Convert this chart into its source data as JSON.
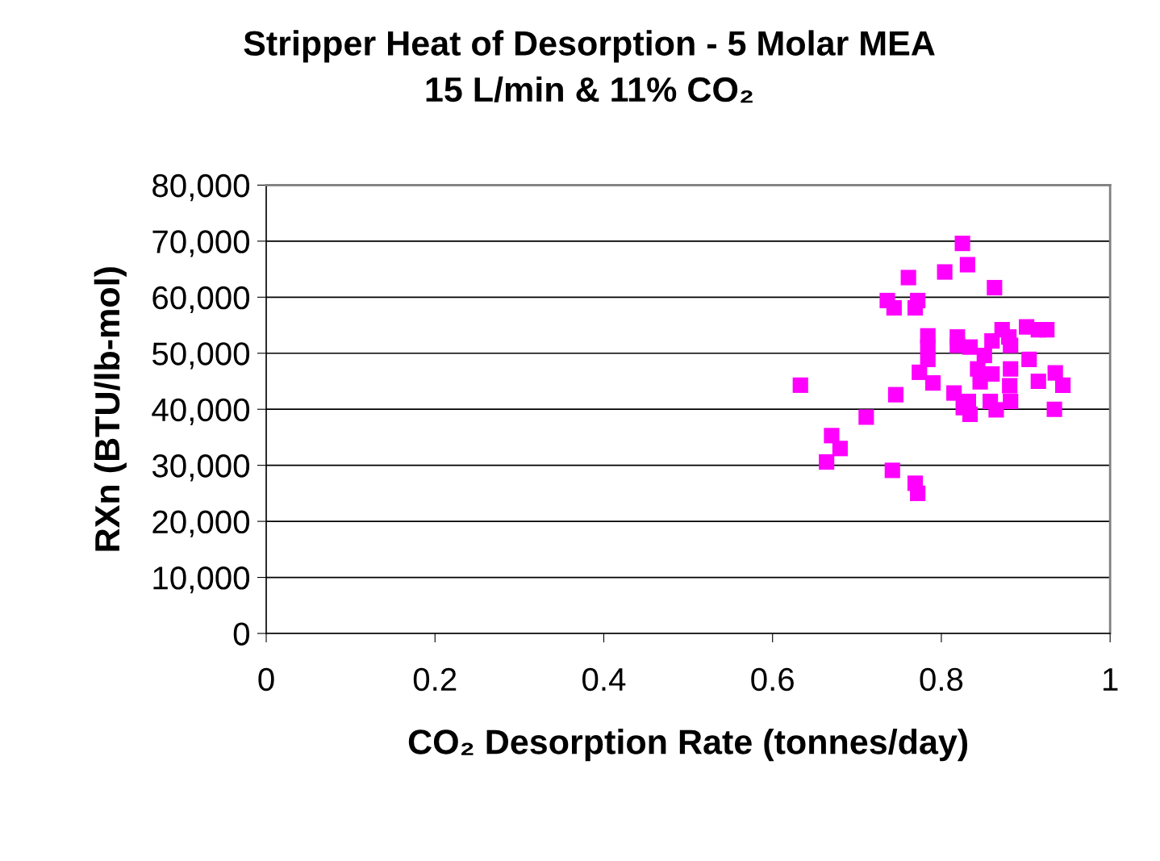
{
  "chart_data": {
    "type": "scatter",
    "title": "Stripper Heat of Desorption - 5 Molar MEA\n15 L/min & 11% CO₂",
    "xlabel": "CO₂ Desorption Rate (tonnes/day)",
    "ylabel": "RXn (BTU/lb-mol)",
    "xlim": [
      0,
      1
    ],
    "xticks": [
      0,
      0.2,
      0.4,
      0.6,
      0.8,
      1
    ],
    "ylim": [
      0,
      80000
    ],
    "yticks": [
      {
        "value": 0,
        "label": "0"
      },
      {
        "value": 10000,
        "label": "10,000"
      },
      {
        "value": 20000,
        "label": "20,000"
      },
      {
        "value": 30000,
        "label": "30,000"
      },
      {
        "value": 40000,
        "label": "40,000"
      },
      {
        "value": 50000,
        "label": "50,000"
      },
      {
        "value": 60000,
        "label": "60,000"
      },
      {
        "value": 70000,
        "label": "70,000"
      },
      {
        "value": 80000,
        "label": "80,000"
      }
    ],
    "grid": "y",
    "marker": "square",
    "series": [
      {
        "color": "#ff00ff",
        "x": [
          0.633,
          0.67,
          0.68,
          0.664,
          0.711,
          0.738,
          0.742,
          0.769,
          0.772,
          0.746,
          0.774,
          0.79,
          0.784,
          0.784,
          0.784,
          0.736,
          0.744,
          0.761,
          0.769,
          0.772,
          0.804,
          0.825,
          0.831,
          0.863,
          0.872,
          0.88,
          0.901,
          0.915,
          0.925,
          0.819,
          0.819,
          0.834,
          0.86,
          0.882,
          0.851,
          0.904,
          0.843,
          0.86,
          0.882,
          0.915,
          0.935,
          0.944,
          0.846,
          0.881,
          0.815,
          0.832,
          0.858,
          0.882,
          0.834,
          0.865,
          0.93,
          0.934,
          0.826
        ],
        "values": [
          44300,
          35300,
          33000,
          30600,
          38600,
          null,
          29100,
          26800,
          25000,
          42600,
          46600,
          44700,
          48900,
          51100,
          53100,
          59400,
          58100,
          63500,
          58100,
          59400,
          64500,
          69600,
          65800,
          61700,
          54200,
          52900,
          54700,
          54200,
          54200,
          52900,
          51400,
          51100,
          52200,
          51400,
          49600,
          48900,
          47200,
          46300,
          47200,
          45000,
          46500,
          44300,
          44900,
          44200,
          42900,
          41400,
          41400,
          41400,
          39100,
          39900,
          null,
          40000,
          40300
        ]
      }
    ]
  }
}
